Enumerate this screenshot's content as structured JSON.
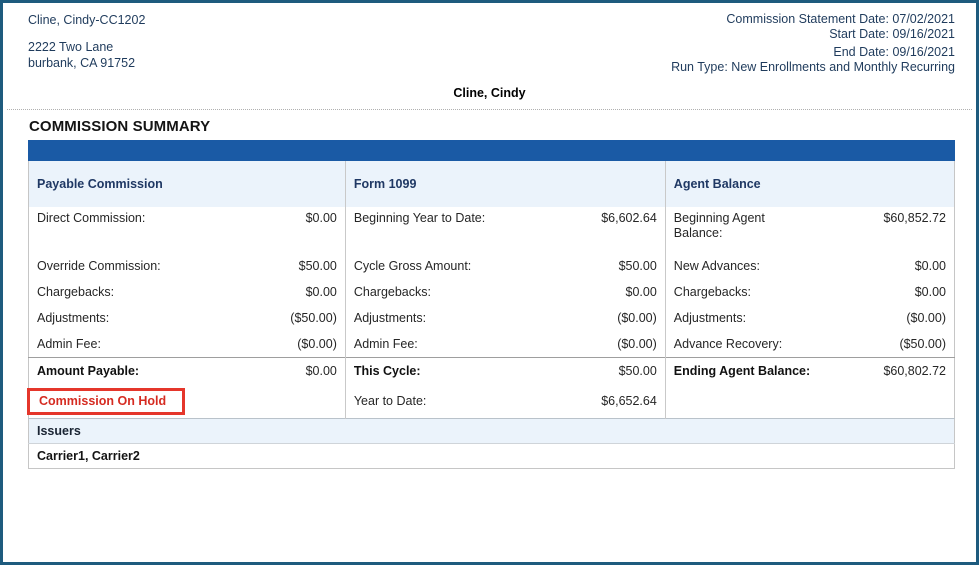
{
  "letterhead": {
    "agent_name_code": "Cline, Cindy-CC1202",
    "address_line1": "2222 Two Lane",
    "address_line2": "burbank, CA 91752"
  },
  "statement_meta": {
    "commission_statement_date": "Commission Statement Date: 07/02/2021",
    "start_date": "Start Date: 09/16/2021",
    "end_date": "End Date: 09/16/2021",
    "run_type": "Run Type: New Enrollments and Monthly Recurring"
  },
  "agent_title": "Cline, Cindy",
  "summary": {
    "section_title": "COMMISSION SUMMARY",
    "columns": [
      "Payable Commission",
      "Form 1099",
      "Agent Balance"
    ],
    "rows": [
      {
        "payable_label": "Direct Commission:",
        "payable_value": "$0.00",
        "form1099_label": "Beginning Year to Date:",
        "form1099_value": "$6,602.64",
        "agent_label": "Beginning Agent Balance:",
        "agent_value": "$60,852.72"
      },
      {
        "payable_label": "Override Commission:",
        "payable_value": "$50.00",
        "form1099_label": "Cycle Gross Amount:",
        "form1099_value": "$50.00",
        "agent_label": "New Advances:",
        "agent_value": "$0.00"
      },
      {
        "payable_label": "Chargebacks:",
        "payable_value": "$0.00",
        "form1099_label": "Chargebacks:",
        "form1099_value": "$0.00",
        "agent_label": "Chargebacks:",
        "agent_value": "$0.00"
      },
      {
        "payable_label": "Adjustments:",
        "payable_value": "($50.00)",
        "form1099_label": "Adjustments:",
        "form1099_value": "($0.00)",
        "agent_label": "Adjustments:",
        "agent_value": "($0.00)"
      },
      {
        "payable_label": "Admin Fee:",
        "payable_value": "($0.00)",
        "form1099_label": "Admin Fee:",
        "form1099_value": "($0.00)",
        "agent_label": "Advance Recovery:",
        "agent_value": "($50.00)"
      }
    ],
    "totals": {
      "payable_label": "Amount Payable:",
      "payable_value": "$0.00",
      "form1099_label": "This Cycle:",
      "form1099_value": "$50.00",
      "agent_label": "Ending Agent Balance:",
      "agent_value": "$60,802.72"
    },
    "hold_note": "Commission On Hold",
    "year_to_date_label": "Year to Date:",
    "year_to_date_value": "$6,652.64",
    "issuers_header": "Issuers",
    "issuers_value": "Carrier1, Carrier2"
  },
  "colors": {
    "title_bar_blue": "#1A5AA5",
    "header_row_blue": "#EBF3FB",
    "navy_text": "#1F3B5C",
    "hold_text_red": "#D52B21",
    "hold_border_red": "#E5362B",
    "frame_border": "#1E5B7E"
  }
}
